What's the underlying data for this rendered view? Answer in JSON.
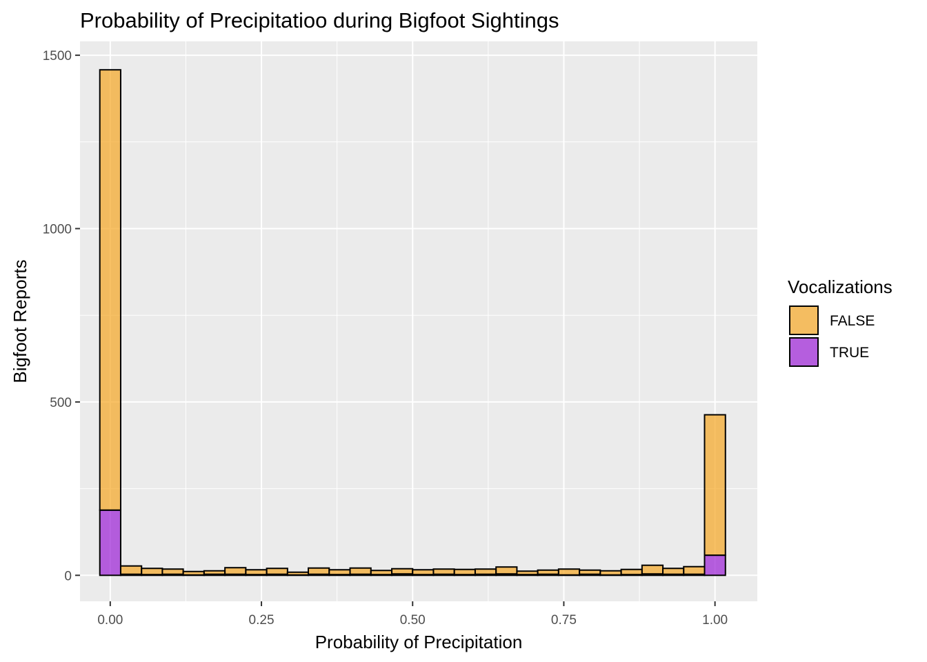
{
  "chart_data": {
    "type": "bar",
    "subtype": "stacked-histogram",
    "title": "Probability of Precipitatioo during Bigfoot Sightings",
    "xlabel": "Probability of Precipitation",
    "ylabel": "Bigfoot Reports",
    "xlim": [
      -0.05,
      1.07
    ],
    "ylim": [
      -75,
      1540
    ],
    "x_ticks": [
      0.0,
      0.25,
      0.5,
      0.75,
      1.0
    ],
    "x_tick_labels": [
      "0.00",
      "0.25",
      "0.50",
      "0.75",
      "1.00"
    ],
    "y_ticks": [
      0,
      500,
      1000,
      1500
    ],
    "y_tick_labels": [
      "0",
      "500",
      "1000",
      "1500"
    ],
    "grid": true,
    "bin_width": 0.0345,
    "bin_centers": [
      0.0,
      0.0345,
      0.069,
      0.1034,
      0.1379,
      0.1724,
      0.2069,
      0.2414,
      0.2759,
      0.3103,
      0.3448,
      0.3793,
      0.4138,
      0.4483,
      0.4828,
      0.5172,
      0.5517,
      0.5862,
      0.6207,
      0.6552,
      0.6897,
      0.7241,
      0.7586,
      0.7931,
      0.8276,
      0.8621,
      0.8966,
      0.931,
      0.9655,
      1.0
    ],
    "series": [
      {
        "name": "FALSE",
        "color": "#f5a623",
        "values": [
          1270,
          24,
          18,
          15,
          10,
          10,
          19,
          14,
          17,
          8,
          18,
          14,
          18,
          12,
          15,
          14,
          15,
          15,
          15,
          20,
          10,
          12,
          17,
          12,
          12,
          15,
          25,
          17,
          22,
          405
        ]
      },
      {
        "name": "TRUE",
        "color": "#9b1fd6",
        "values": [
          188,
          3,
          2,
          3,
          1,
          3,
          3,
          2,
          3,
          1,
          3,
          2,
          3,
          2,
          4,
          2,
          3,
          2,
          3,
          4,
          2,
          3,
          1,
          3,
          1,
          2,
          4,
          3,
          3,
          58
        ]
      }
    ],
    "legend": {
      "title": "Vocalizations",
      "entries": [
        "FALSE",
        "TRUE"
      ],
      "position": "right"
    },
    "fill_opacity": 0.7,
    "panel_background": "#ebebeb",
    "gridline_color": "#ffffff",
    "bar_outline_color": "#000000"
  }
}
